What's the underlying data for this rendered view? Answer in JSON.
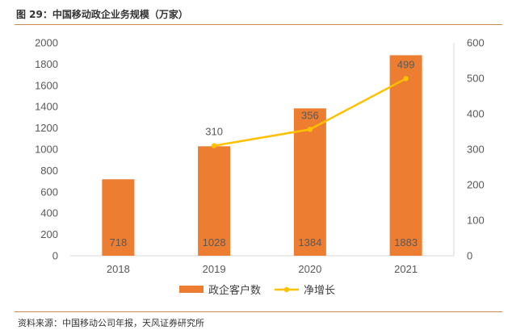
{
  "title": "图 29：中国移动政企业务规模（万家）",
  "source": "资料来源：中国移动公司年报，天风证券研究所",
  "chart_data": {
    "type": "bar+line",
    "categories": [
      "2018",
      "2019",
      "2020",
      "2021"
    ],
    "series": [
      {
        "name": "政企客户数",
        "type": "bar",
        "axis": "left",
        "values": [
          718,
          1028,
          1384,
          1883
        ],
        "color": "#ed7d31"
      },
      {
        "name": "净增长",
        "type": "line",
        "axis": "right",
        "values": [
          null,
          310,
          356,
          499
        ],
        "color": "#ffc000"
      }
    ],
    "y_left": {
      "min": 0,
      "max": 2000,
      "ticks": [
        0,
        200,
        400,
        600,
        800,
        1000,
        1200,
        1400,
        1600,
        1800,
        2000
      ]
    },
    "y_right": {
      "min": 0,
      "max": 600,
      "ticks": [
        0,
        100,
        200,
        300,
        400,
        500,
        600
      ]
    },
    "grid": false,
    "legend_position": "bottom"
  }
}
